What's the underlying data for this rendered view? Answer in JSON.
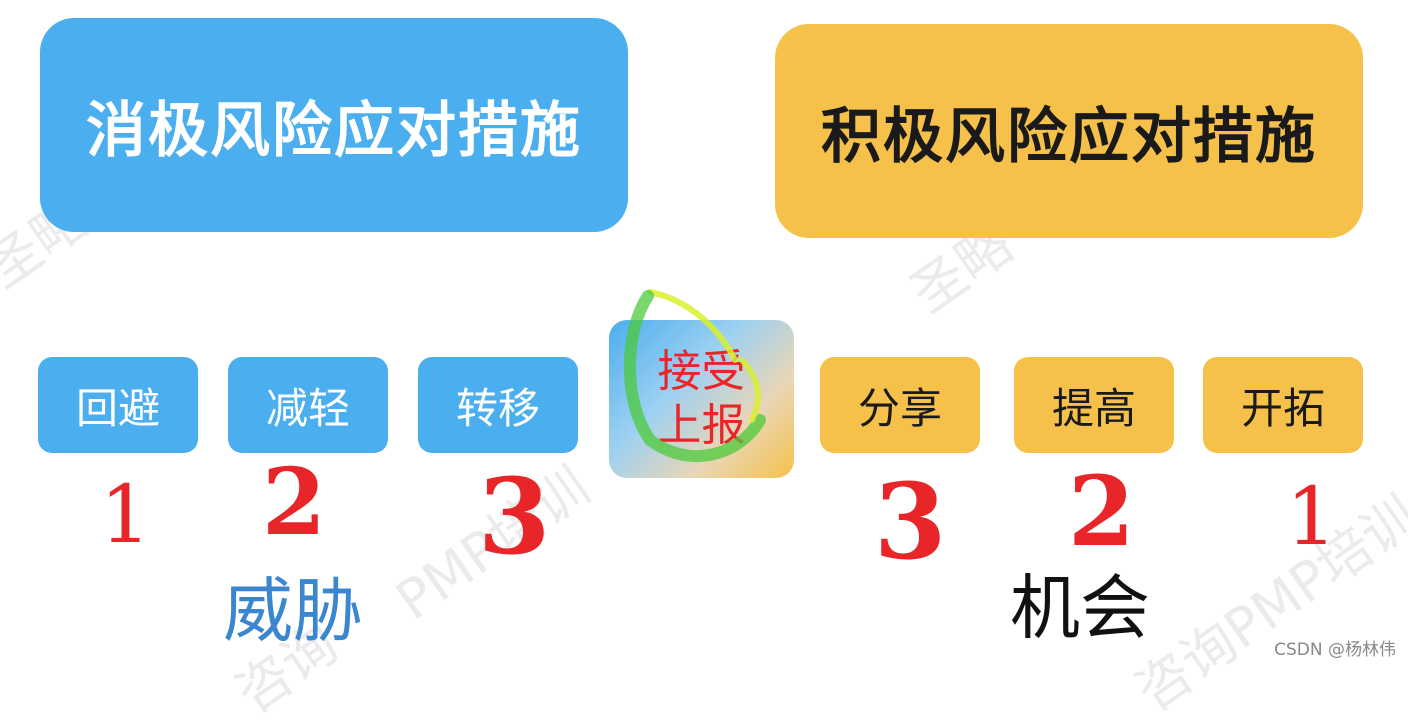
{
  "headers": {
    "negative": "消极风险应对措施",
    "positive": "积极风险应对措施"
  },
  "strategies": {
    "avoid": "回避",
    "mitigate": "减轻",
    "transfer": "转移",
    "accept_line1": "接受",
    "accept_line2": "上报",
    "share": "分享",
    "enhance": "提高",
    "exploit": "开拓"
  },
  "rankings": {
    "avoid": "1",
    "mitigate": "2",
    "transfer": "3",
    "share": "3",
    "enhance": "2",
    "exploit": "1"
  },
  "groups": {
    "threat": "威胁",
    "opportunity": "机会"
  },
  "watermarks": {
    "w1": "圣略",
    "w2": "圣略",
    "w3": "PMP培训",
    "w4": "咨询PMP培训",
    "w5": "咨询"
  },
  "footer": "CSDN @杨林伟",
  "colors": {
    "blue": "#4aaeef",
    "gold": "#f6c14a",
    "red": "#e8262a",
    "highlight": "#d8f02a"
  }
}
